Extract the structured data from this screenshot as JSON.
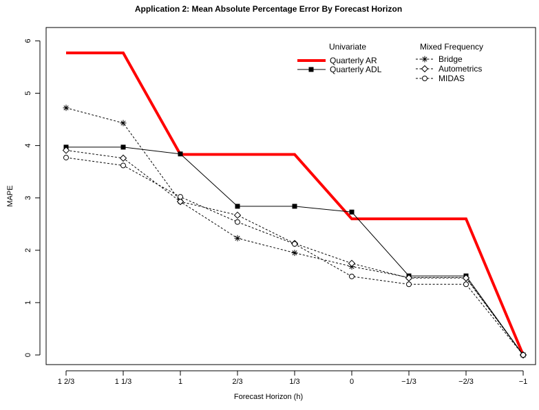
{
  "chart_data": {
    "type": "line",
    "title": "Application 2: Mean Absolute Percentage Error By Forecast Horizon",
    "xlabel": "Forecast Horizon (h)",
    "ylabel": "MAPE",
    "categories": [
      "1 2/3",
      "1 1/3",
      "1",
      "2/3",
      "1/3",
      "0",
      "−1/3",
      "−2/3",
      "−1"
    ],
    "yticks": [
      0,
      1,
      2,
      3,
      4,
      5,
      6
    ],
    "ylim": [
      -0.1,
      6.2
    ],
    "grid": false,
    "legend_position": "top-right",
    "legend_groups": [
      {
        "heading": "Univariate",
        "series": [
          "Quarterly AR",
          "Quarterly ADL"
        ]
      },
      {
        "heading": "Mixed Frequency",
        "series": [
          "Bridge",
          "Autometrics",
          "MIDAS"
        ]
      }
    ],
    "series": [
      {
        "name": "Quarterly AR",
        "style": "step-thick",
        "color": "#ff0000",
        "values": [
          5.77,
          5.77,
          3.83,
          3.83,
          3.83,
          2.6,
          2.6,
          2.6,
          0.0
        ]
      },
      {
        "name": "Quarterly ADL",
        "style": "solid",
        "marker": "square",
        "color": "#000000",
        "values": [
          3.97,
          3.97,
          3.84,
          2.84,
          2.84,
          2.73,
          1.51,
          1.51,
          0.0
        ]
      },
      {
        "name": "Bridge",
        "style": "dashed",
        "marker": "asterisk",
        "color": "#000000",
        "values": [
          4.72,
          4.43,
          2.93,
          2.23,
          1.95,
          1.69,
          1.48,
          1.48,
          0.0
        ]
      },
      {
        "name": "Autometrics",
        "style": "dashed",
        "marker": "diamond",
        "color": "#000000",
        "values": [
          3.91,
          3.76,
          2.93,
          2.67,
          2.13,
          1.75,
          1.47,
          1.47,
          0.0
        ]
      },
      {
        "name": "MIDAS",
        "style": "dashed",
        "marker": "circle",
        "color": "#000000",
        "values": [
          3.77,
          3.62,
          3.02,
          2.54,
          2.12,
          1.5,
          1.35,
          1.35,
          0.0
        ]
      }
    ]
  }
}
